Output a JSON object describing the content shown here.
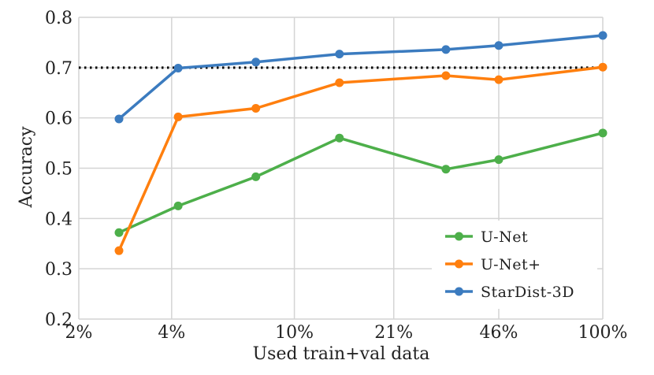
{
  "chart_data": {
    "type": "line",
    "title": "",
    "xlabel": "Used train+val data",
    "ylabel": "Accuracy",
    "x_tick_labels": [
      "2%",
      "4%",
      "10%",
      "21%",
      "46%",
      "100%"
    ],
    "x_tick_values": [
      2,
      4,
      10,
      21,
      46,
      100
    ],
    "x_scale": "log",
    "xlim": [
      2,
      100
    ],
    "y_ticks": [
      0.2,
      0.3,
      0.4,
      0.5,
      0.6,
      0.7,
      0.8
    ],
    "y_tick_labels": [
      "0.2",
      "0.3",
      "0.4",
      "0.5",
      "0.6",
      "0.7",
      "0.8"
    ],
    "ylim": [
      0.2,
      0.8
    ],
    "grid": true,
    "legend_position": "bottom-right",
    "x": [
      2.7,
      4.2,
      7.5,
      14.0,
      31.0,
      46.0,
      100.0
    ],
    "series": [
      {
        "name": "U-Net",
        "color": "#4daf4a",
        "values": [
          0.372,
          0.425,
          0.483,
          0.56,
          0.498,
          0.517,
          0.57
        ]
      },
      {
        "name": "U-Net+",
        "color": "#ff7f0e",
        "values": [
          0.336,
          0.602,
          0.619,
          0.67,
          0.684,
          0.676,
          0.701
        ]
      },
      {
        "name": "StarDist-3D",
        "color": "#3b7bbf",
        "values": [
          0.598,
          0.699,
          0.711,
          0.727,
          0.736,
          0.744,
          0.764
        ]
      }
    ],
    "reference_line": {
      "y": 0.7,
      "style": "dotted",
      "color": "#000000"
    }
  }
}
